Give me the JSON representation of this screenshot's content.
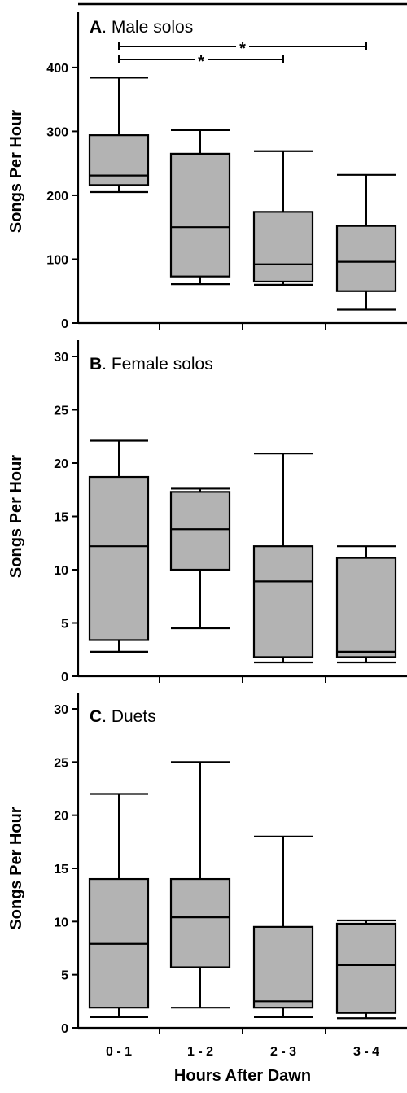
{
  "figure": {
    "xlabel": "Hours After Dawn",
    "categories": [
      "0 - 1",
      "1 - 2",
      "2 - 3",
      "3 - 4"
    ]
  },
  "chart_data": [
    {
      "type": "box",
      "panel": "A",
      "title": ". Male solos",
      "ylabel": "Songs Per Hour",
      "ylim": [
        0,
        475
      ],
      "yticks": [
        0,
        100,
        200,
        300,
        400
      ],
      "categories": [
        "0 - 1",
        "1 - 2",
        "2 - 3",
        "3 - 4"
      ],
      "boxes": [
        {
          "min": 205,
          "q1": 216,
          "median": 231,
          "q3": 294,
          "max": 384
        },
        {
          "min": 61,
          "q1": 73,
          "median": 150,
          "q3": 265,
          "max": 302
        },
        {
          "min": 60,
          "q1": 65,
          "median": 92,
          "q3": 174,
          "max": 269
        },
        {
          "min": 21,
          "q1": 50,
          "median": 96,
          "q3": 152,
          "max": 232
        }
      ],
      "annotations": [
        {
          "text": "*",
          "from": "0 - 1",
          "to": "3 - 4"
        },
        {
          "text": "*",
          "from": "0 - 1",
          "to": "2 - 3"
        }
      ],
      "boxcolor": "#b3b3b3"
    },
    {
      "type": "box",
      "panel": "B",
      "title": ". Female solos",
      "ylabel": "Songs Per Hour",
      "ylim": [
        0,
        30
      ],
      "yticks": [
        0,
        5,
        10,
        15,
        20,
        25,
        30
      ],
      "categories": [
        "0 - 1",
        "1 - 2",
        "2 - 3",
        "3 - 4"
      ],
      "boxes": [
        {
          "min": 2.3,
          "q1": 3.4,
          "median": 12.2,
          "q3": 18.7,
          "max": 22.1
        },
        {
          "min": 4.5,
          "q1": 10.0,
          "median": 13.8,
          "q3": 17.3,
          "max": 17.6
        },
        {
          "min": 1.3,
          "q1": 1.8,
          "median": 8.9,
          "q3": 12.2,
          "max": 20.9
        },
        {
          "min": 1.3,
          "q1": 1.8,
          "median": 2.3,
          "q3": 11.1,
          "max": 12.2
        }
      ],
      "boxcolor": "#b3b3b3"
    },
    {
      "type": "box",
      "panel": "C",
      "title": ". Duets",
      "ylabel": "Songs Per Hour",
      "ylim": [
        0,
        30
      ],
      "yticks": [
        0,
        5,
        10,
        15,
        20,
        25,
        30
      ],
      "categories": [
        "0 - 1",
        "1 - 2",
        "2 - 3",
        "3 - 4"
      ],
      "boxes": [
        {
          "min": 1.0,
          "q1": 1.9,
          "median": 7.9,
          "q3": 14.0,
          "max": 22.0
        },
        {
          "min": 1.9,
          "q1": 5.7,
          "median": 10.4,
          "q3": 14.0,
          "max": 25.0
        },
        {
          "min": 1.0,
          "q1": 1.9,
          "median": 2.5,
          "q3": 9.5,
          "max": 18.0
        },
        {
          "min": 0.9,
          "q1": 1.4,
          "median": 5.9,
          "q3": 9.8,
          "max": 10.1
        }
      ],
      "boxcolor": "#b3b3b3"
    }
  ]
}
